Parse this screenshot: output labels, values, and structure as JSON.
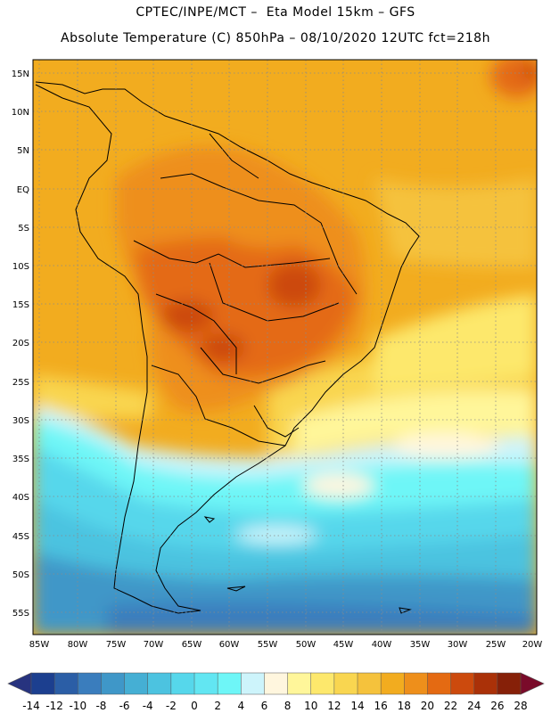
{
  "title_line1": "CPTEC/INPE/MCT –  Eta Model 15km – GFS",
  "title_line2": "Absolute Temperature (C) 850hPa – 08/10/2020 12UTC fct=218h",
  "lat_labels": [
    "15N",
    "10N",
    "5N",
    "EQ",
    "5S",
    "10S",
    "15S",
    "20S",
    "25S",
    "30S",
    "35S",
    "40S",
    "45S",
    "50S",
    "55S"
  ],
  "lon_labels": [
    "85W",
    "80W",
    "75W",
    "70W",
    "65W",
    "60W",
    "55W",
    "50W",
    "45W",
    "40W",
    "35W",
    "30W",
    "25W",
    "20W"
  ],
  "colorbar": {
    "labels": [
      "-14",
      "-12",
      "-10",
      "-8",
      "-6",
      "-4",
      "-2",
      "0",
      "2",
      "4",
      "6",
      "8",
      "10",
      "12",
      "14",
      "16",
      "18",
      "20",
      "22",
      "24",
      "26",
      "28"
    ],
    "colors": [
      "#1c3f8f",
      "#2b5ea6",
      "#3a7dbd",
      "#3f97c8",
      "#45afd4",
      "#4cc3e0",
      "#56d7eb",
      "#62e6f2",
      "#6ef6f7",
      "#cdf4fb",
      "#fff6de",
      "#fff69a",
      "#fde86c",
      "#f9d650",
      "#f5c23c",
      "#f2ac1f",
      "#ee8f1b",
      "#e46a12",
      "#cc4a0d",
      "#aa3108",
      "#862008"
    ],
    "under_color": "#27337f",
    "over_color": "#7a0b2a"
  },
  "colors": {
    "warm": "#f2ac1f",
    "hot": "#e46a12",
    "hotter": "#cc4a0d",
    "cool": "#56d7eb",
    "cold": "#3a7dbd",
    "pale": "#fff6de"
  }
}
